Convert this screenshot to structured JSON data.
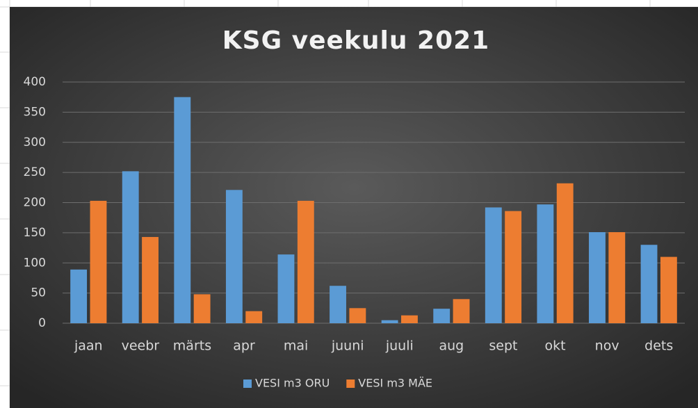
{
  "chart_data": {
    "type": "bar",
    "title": "KSG veekulu 2021",
    "categories": [
      "jaan",
      "veebr",
      "märts",
      "apr",
      "mai",
      "juuni",
      "juuli",
      "aug",
      "sept",
      "okt",
      "nov",
      "dets"
    ],
    "series": [
      {
        "name": "VESI m3 ORU",
        "color": "#5b9bd5",
        "values": [
          89,
          252,
          375,
          221,
          114,
          62,
          5,
          24,
          192,
          197,
          151,
          130
        ]
      },
      {
        "name": "VESI m3 MÄE",
        "color": "#ed7d31",
        "values": [
          203,
          143,
          48,
          20,
          203,
          25,
          13,
          40,
          186,
          232,
          151,
          110
        ]
      }
    ],
    "ylim": [
      0,
      400
    ],
    "yticks": [
      0,
      50,
      100,
      150,
      200,
      250,
      300,
      350,
      400
    ],
    "grid": true,
    "legend": "bottom"
  }
}
